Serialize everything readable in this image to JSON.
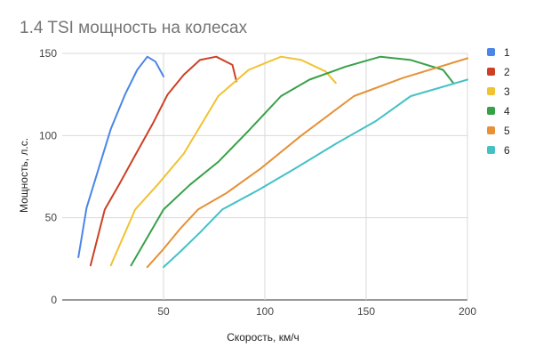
{
  "chart_data": {
    "type": "line",
    "title": "1.4 TSI мощность на колесах",
    "xlabel": "Скорость, км/ч",
    "ylabel": "Мощность, л.с.",
    "xlim": [
      0,
      200
    ],
    "ylim": [
      0,
      150
    ],
    "xticks": [
      50,
      100,
      150,
      200
    ],
    "yticks": [
      0,
      50,
      100,
      150
    ],
    "grid": true,
    "legend_position": "right",
    "series": [
      {
        "name": "1",
        "color": "#4a86e8",
        "x": [
          8,
          12,
          18,
          24,
          31,
          37,
          42,
          46,
          50
        ],
        "y": [
          26,
          56,
          80,
          104,
          125,
          140,
          148,
          145,
          136
        ]
      },
      {
        "name": "2",
        "color": "#cc4125",
        "x": [
          14,
          21,
          28,
          36,
          45,
          52,
          60,
          68,
          76,
          84,
          86
        ],
        "y": [
          21,
          55,
          70,
          88,
          108,
          125,
          137,
          146,
          148,
          143,
          133
        ]
      },
      {
        "name": "3",
        "color": "#f1c232",
        "x": [
          24,
          30,
          36,
          47,
          60,
          77,
          92,
          108,
          118,
          130,
          135
        ],
        "y": [
          21,
          38,
          55,
          70,
          89,
          124,
          140,
          148,
          146,
          139,
          132
        ]
      },
      {
        "name": "4",
        "color": "#38a148",
        "x": [
          34,
          42,
          50,
          63,
          77,
          92,
          108,
          122,
          140,
          157,
          172,
          188,
          193
        ],
        "y": [
          21,
          38,
          55,
          70,
          84,
          103,
          124,
          134,
          142,
          148,
          146,
          140,
          132
        ]
      },
      {
        "name": "5",
        "color": "#e69138",
        "x": [
          42,
          50,
          58,
          67,
          81,
          98,
          118,
          144,
          168,
          200
        ],
        "y": [
          20,
          31,
          43,
          55,
          65,
          80,
          100,
          124,
          135,
          147
        ]
      },
      {
        "name": "6",
        "color": "#45c1c6",
        "x": [
          50,
          58,
          68,
          79,
          97,
          115,
          135,
          155,
          172,
          200
        ],
        "y": [
          20,
          29,
          41,
          55,
          67,
          80,
          95,
          109,
          124,
          134
        ]
      }
    ]
  }
}
